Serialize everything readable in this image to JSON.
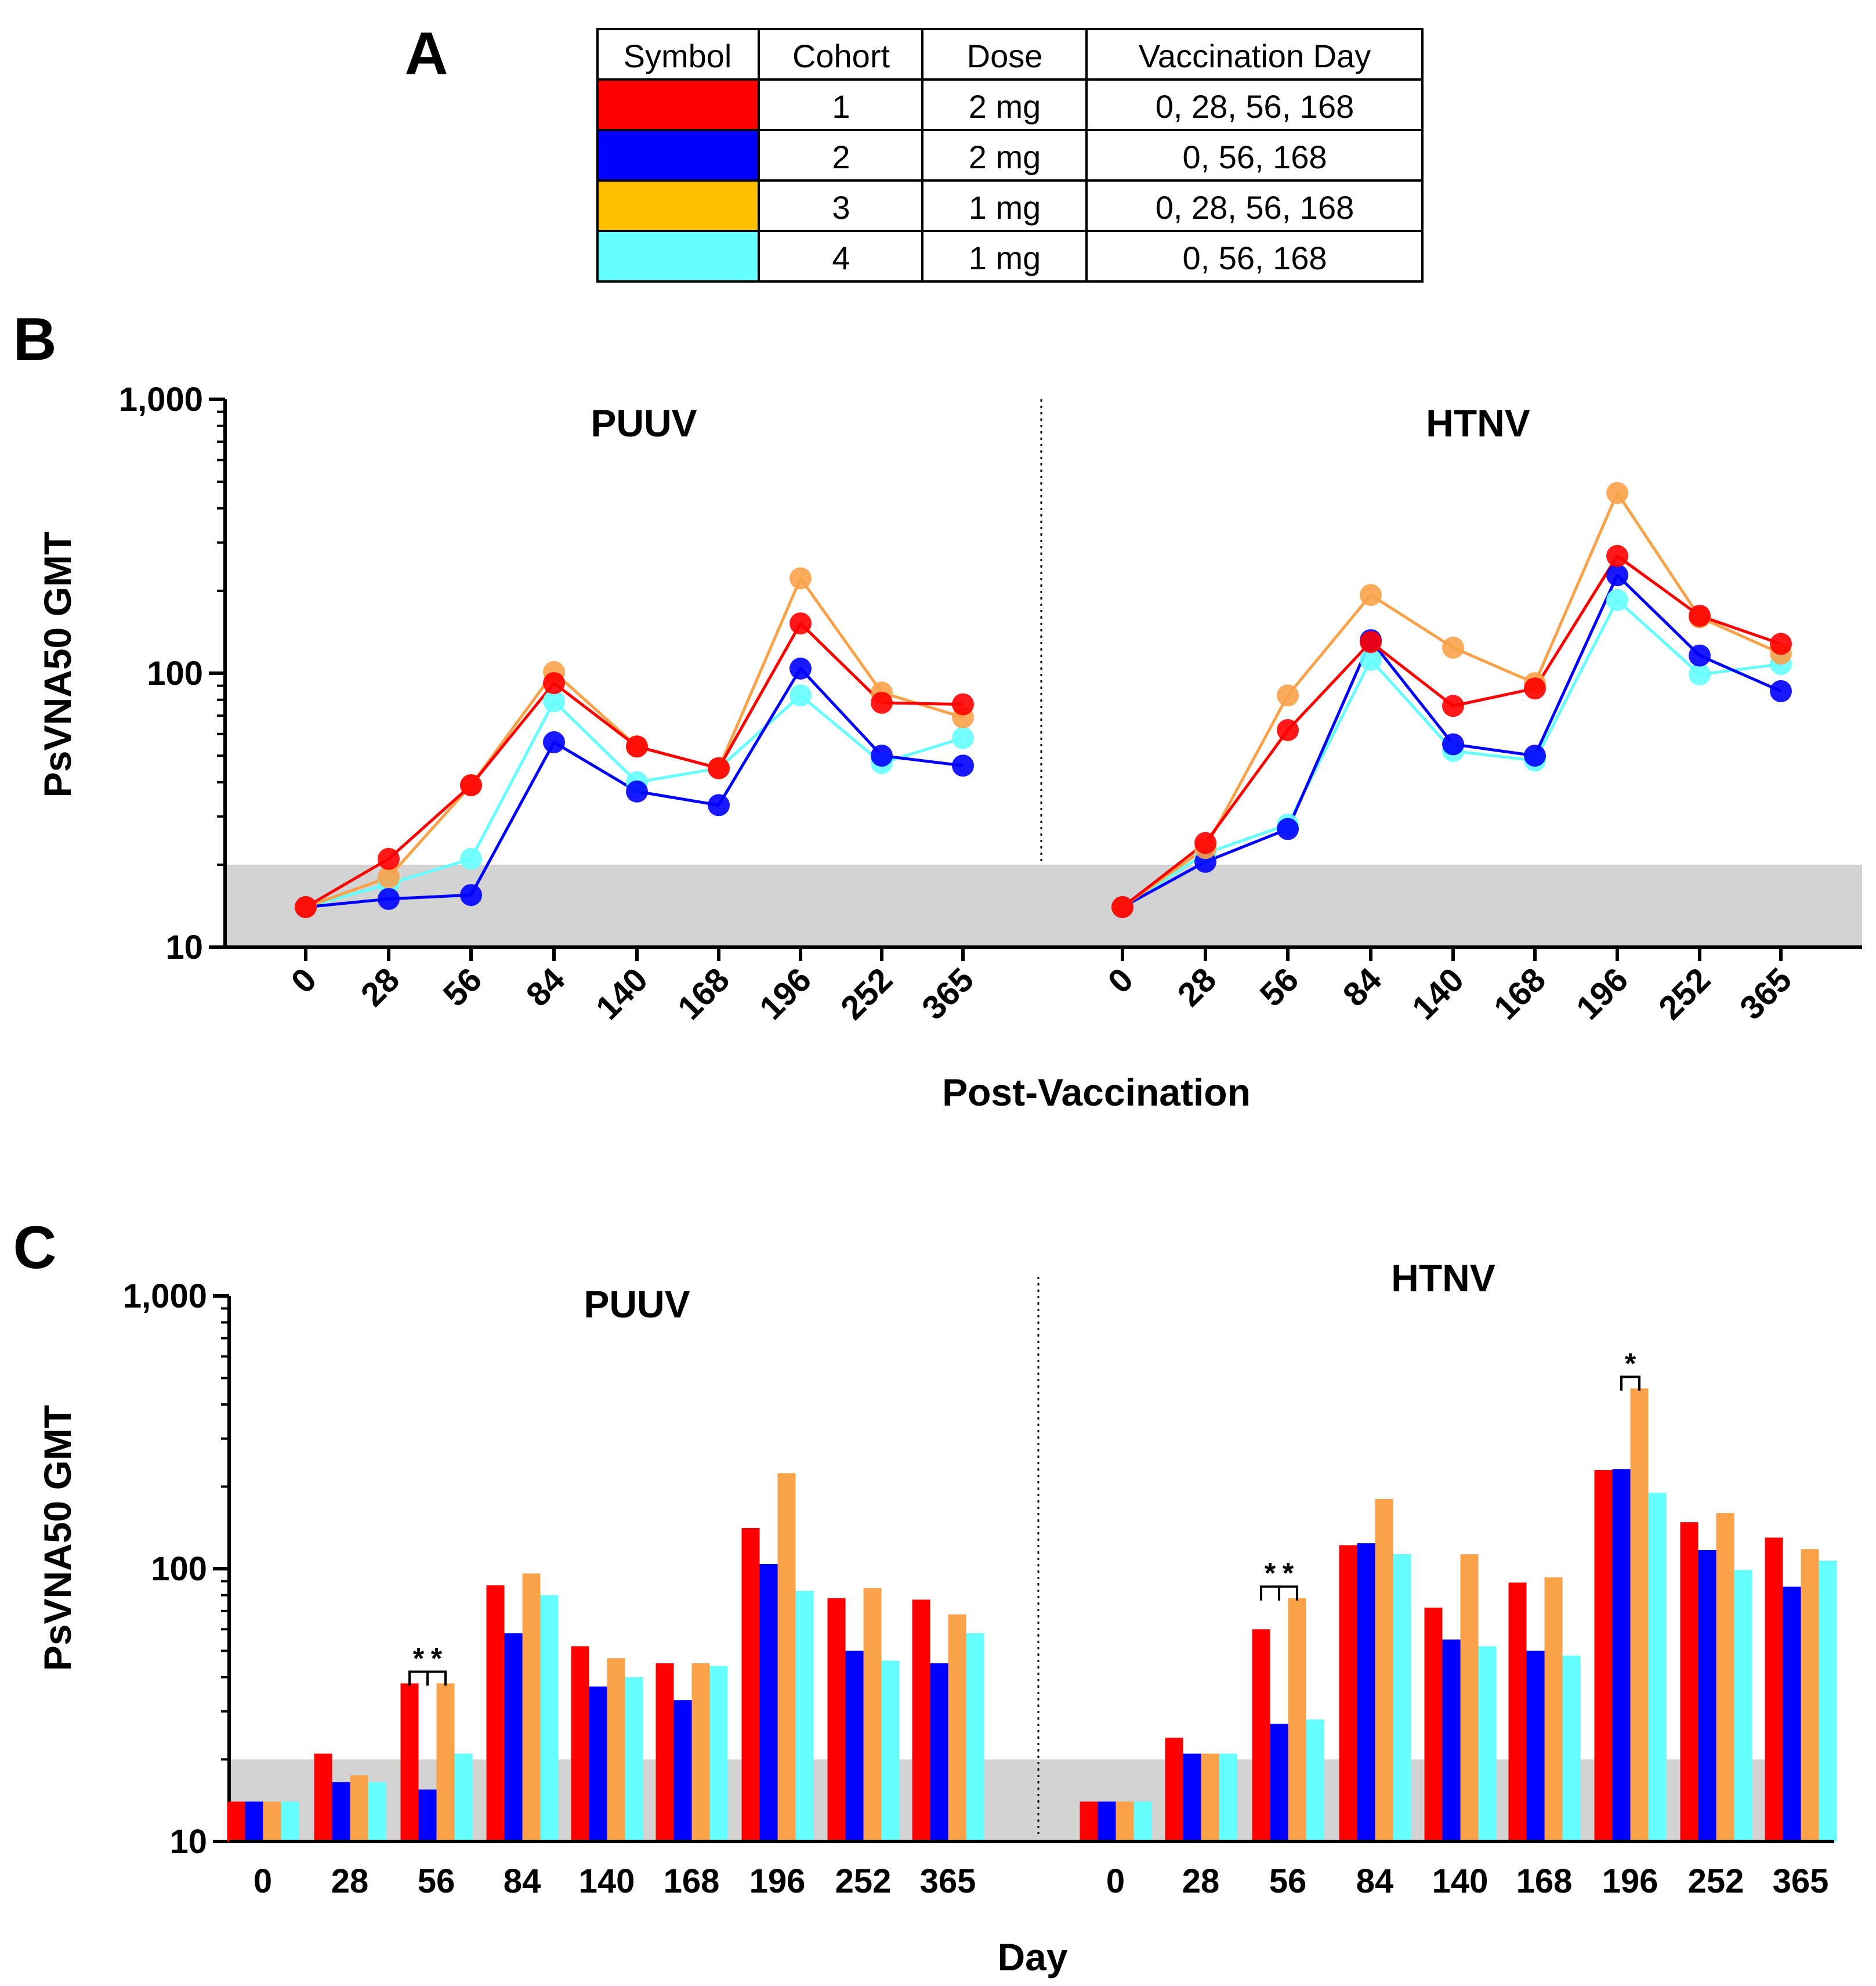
{
  "panels": {
    "a": "A",
    "b": "B",
    "c": "C"
  },
  "legend_table": {
    "headers": [
      "Symbol",
      "Cohort",
      "Dose",
      "Vaccination Day"
    ],
    "rows": [
      {
        "color": "#ff0000",
        "cohort": "1",
        "dose": "2 mg",
        "days": "0, 28, 56, 168"
      },
      {
        "color": "#0000ff",
        "cohort": "2",
        "dose": "2 mg",
        "days": "0, 56, 168"
      },
      {
        "color": "#ffc000",
        "cohort": "3",
        "dose": "1 mg",
        "days": "0, 28, 56, 168"
      },
      {
        "color": "#66ffff",
        "cohort": "4",
        "dose": "1 mg",
        "days": "0, 56, 168"
      }
    ]
  },
  "series_colors": {
    "cohort1": "#ff0000",
    "cohort2": "#0000ff",
    "cohort3": "#f9a24a",
    "cohort4": "#66ffff"
  },
  "chart_data": [
    {
      "type": "line",
      "panel": "B",
      "ylabel": "PsVNA50 GMT",
      "xlabel": "Post-Vaccination",
      "yscale": "log",
      "ylim": [
        10,
        1000
      ],
      "y_ticks": [
        10,
        100,
        1000
      ],
      "y_tick_labels": [
        "10",
        "100",
        "1,000"
      ],
      "shaded_band": [
        10,
        20
      ],
      "categories": [
        "0",
        "28",
        "56",
        "84",
        "140",
        "168",
        "196",
        "252",
        "365"
      ],
      "groups": [
        {
          "title": "PUUV",
          "series": [
            {
              "name": "Cohort 1",
              "values": [
                14,
                21,
                39,
                92,
                54,
                45,
                152,
                78,
                77
              ]
            },
            {
              "name": "Cohort 2",
              "values": [
                14,
                15,
                15.5,
                56,
                37,
                33,
                104,
                50,
                46
              ]
            },
            {
              "name": "Cohort 3",
              "values": [
                14,
                18,
                39,
                101,
                54,
                45,
                222,
                85,
                69
              ]
            },
            {
              "name": "Cohort 4",
              "values": [
                14,
                17,
                21,
                79,
                40,
                45,
                83,
                47,
                58
              ]
            }
          ]
        },
        {
          "title": "HTNV",
          "series": [
            {
              "name": "Cohort 1",
              "values": [
                14,
                24,
                62,
                130,
                76,
                88,
                268,
                162,
                128
              ]
            },
            {
              "name": "Cohort 2",
              "values": [
                14,
                20.5,
                27,
                132,
                55,
                50,
                228,
                116,
                86
              ]
            },
            {
              "name": "Cohort 3",
              "values": [
                14,
                23,
                83,
                193,
                124,
                92,
                455,
                160,
                118
              ]
            },
            {
              "name": "Cohort 4",
              "values": [
                14,
                22,
                28,
                112,
                52,
                48,
                185,
                99,
                108
              ]
            }
          ]
        }
      ]
    },
    {
      "type": "bar",
      "panel": "C",
      "ylabel": "PsVNA50 GMT",
      "xlabel": "Day",
      "yscale": "log",
      "ylim": [
        10,
        1000
      ],
      "y_ticks": [
        10,
        100,
        1000
      ],
      "y_tick_labels": [
        "10",
        "100",
        "1,000"
      ],
      "shaded_band": [
        10,
        20
      ],
      "categories": [
        "0",
        "28",
        "56",
        "84",
        "140",
        "168",
        "196",
        "252",
        "365"
      ],
      "groups": [
        {
          "title": "PUUV",
          "series": [
            {
              "name": "Cohort 1",
              "values": [
                14,
                21,
                38,
                87,
                52,
                45,
                141,
                78,
                77
              ]
            },
            {
              "name": "Cohort 2",
              "values": [
                14,
                16.5,
                15.5,
                58,
                37,
                33,
                104,
                50,
                45
              ]
            },
            {
              "name": "Cohort 3",
              "values": [
                14,
                17.5,
                38,
                96,
                47,
                45,
                224,
                85,
                68
              ]
            },
            {
              "name": "Cohort 4",
              "values": [
                14,
                16.5,
                21,
                80,
                40,
                44,
                83,
                46,
                58
              ]
            }
          ],
          "significance": [
            {
              "category": "56",
              "pairs": [
                [
                  0,
                  1
                ],
                [
                  1,
                  2
                ]
              ],
              "label": "*"
            }
          ]
        },
        {
          "title": "HTNV",
          "series": [
            {
              "name": "Cohort 1",
              "values": [
                14,
                24,
                60,
                122,
                72,
                89,
                230,
                148,
                130
              ]
            },
            {
              "name": "Cohort 2",
              "values": [
                14,
                21,
                27,
                124,
                55,
                50,
                232,
                117,
                86
              ]
            },
            {
              "name": "Cohort 3",
              "values": [
                14,
                21,
                78,
                180,
                113,
                93,
                458,
                160,
                118
              ]
            },
            {
              "name": "Cohort 4",
              "values": [
                14,
                21,
                28,
                113,
                52,
                48,
                190,
                99,
                107
              ]
            }
          ],
          "significance": [
            {
              "category": "56",
              "pairs": [
                [
                  0,
                  1
                ],
                [
                  1,
                  2
                ]
              ],
              "label": "*"
            },
            {
              "category": "196",
              "pairs": [
                [
                  1,
                  2
                ]
              ],
              "label": "*"
            }
          ]
        }
      ]
    }
  ]
}
